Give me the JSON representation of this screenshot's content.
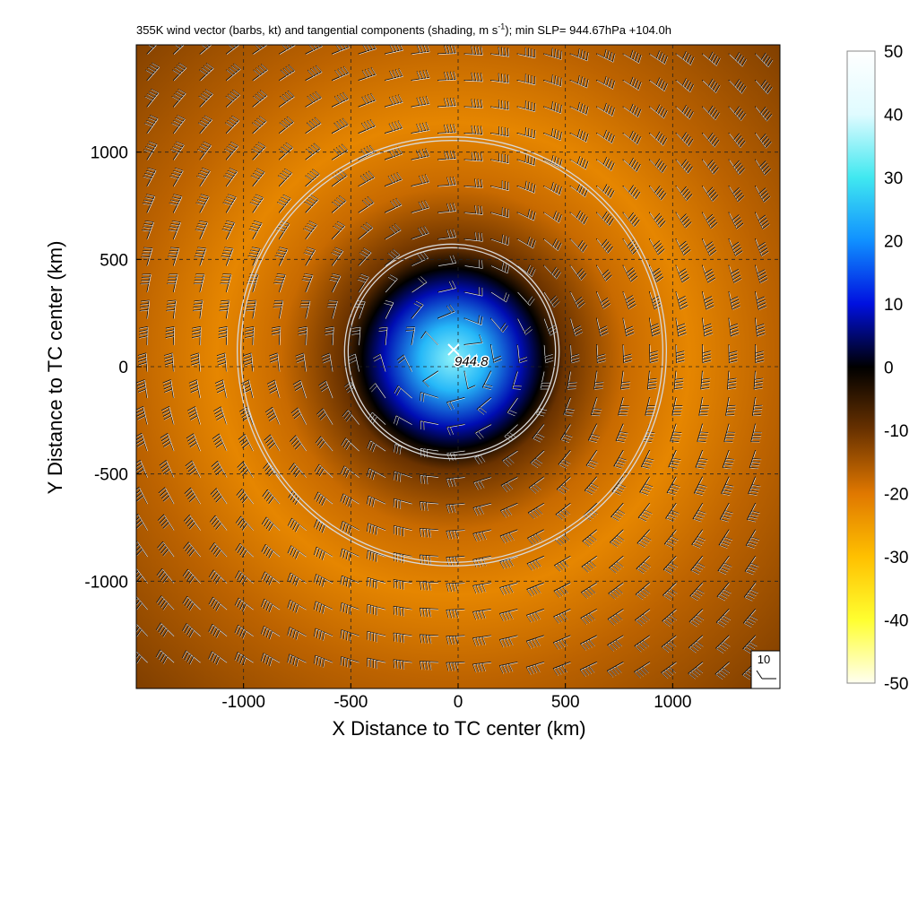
{
  "chart_data": {
    "type": "heatmap",
    "title": {
      "main": "355K wind vector (barbs, kt) and tangential components (shading, m s",
      "sup": "-1",
      "rest": "); min SLP= 944.67hPa    +104.0h"
    },
    "xlabel": "X Distance to TC center (km)",
    "ylabel": "Y Distance to TC center (km)",
    "xlim": [
      -1500,
      1500
    ],
    "ylim": [
      -1500,
      1500
    ],
    "xticks": [
      "-1000",
      "-500",
      "0",
      "500",
      "1000"
    ],
    "yticks": [
      "1000",
      "500",
      "0",
      "-500",
      "-1000"
    ],
    "grid": true,
    "colorbar": {
      "range": [
        -50,
        50
      ],
      "ticks": [
        "50",
        "40",
        "30",
        "20",
        "10",
        "0",
        "-10",
        "-20",
        "-30",
        "-40",
        "-50"
      ],
      "colors": [
        "#ffffff",
        "#e0fbff",
        "#40e8f0",
        "#1090ff",
        "#0010e0",
        "#000000",
        "#6a3200",
        "#e07800",
        "#ffc000",
        "#ffff30",
        "#fffff0"
      ]
    },
    "field": {
      "description_values": "tangential wind, m s-1",
      "center_value": 35,
      "inner_zero_radius_km": 420,
      "peak_negative_radius_km": 1100,
      "peak_negative_value": -22,
      "outer_value": -12
    },
    "range_rings_km": [
      500,
      1000
    ],
    "center_marker_value": "944.8",
    "reference_barb": "10"
  }
}
